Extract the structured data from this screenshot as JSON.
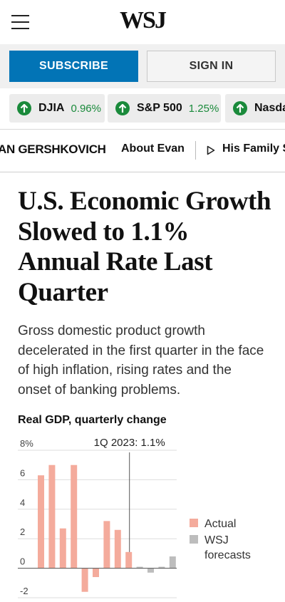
{
  "header": {
    "logo": "WSJ"
  },
  "auth": {
    "subscribe_label": "SUBSCRIBE",
    "signin_label": "SIGN IN"
  },
  "ticker": [
    {
      "name": "DJIA",
      "change": "0.96%",
      "direction": "up"
    },
    {
      "name": "S&P 500",
      "change": "1.25%",
      "direction": "up"
    },
    {
      "name": "Nasda",
      "change": "",
      "direction": "up"
    }
  ],
  "author_bar": {
    "author": "AN GERSHKOVICH",
    "about": "About Evan",
    "family": "His Family S"
  },
  "article": {
    "headline": "U.S. Economic Growth Slowed to 1.1% Annual Rate Last Quarter",
    "dek": "Gross domestic product growth decelerated in the first quarter in the face of high inflation, rising rates and the onset of banking problems."
  },
  "colors": {
    "accent": "#0274b6",
    "up": "#1a8a3b",
    "actual": "#f4ab9c",
    "forecast": "#bdbdbd"
  },
  "chart_data": {
    "type": "bar",
    "title": "Real GDP, quarterly change",
    "annotation": "1Q 2023: 1.1%",
    "ylim": [
      -2,
      8
    ],
    "yticks": [
      "8%",
      "6",
      "4",
      "2",
      "0",
      "-2"
    ],
    "ytick_values": [
      8,
      6,
      4,
      2,
      0,
      -2
    ],
    "grid": true,
    "legend": {
      "position": "right",
      "entries": [
        {
          "label": "Actual",
          "color": "#f4ab9c"
        },
        {
          "label_lines": [
            "WSJ",
            "forecasts"
          ],
          "color": "#bdbdbd"
        }
      ]
    },
    "series": [
      {
        "name": "Actual",
        "values": [
          6.3,
          7.0,
          2.7,
          7.0,
          -1.6,
          -0.6,
          3.2,
          2.6,
          1.1
        ]
      },
      {
        "name": "WSJ forecasts",
        "values": [
          0.1,
          -0.3,
          0.1,
          0.8
        ]
      }
    ]
  }
}
